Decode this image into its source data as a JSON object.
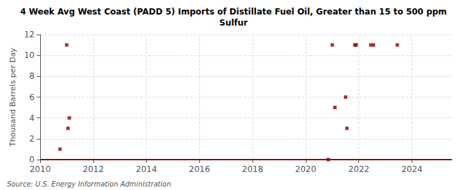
{
  "chart_data": {
    "type": "scatter",
    "title": "4 Week Avg West Coast (PADD 5) Imports of Distillate Fuel Oil, Greater than 15 to 500 ppm\nSulfur",
    "ylabel": "Thousand Barrels per Day",
    "annotations": [
      "Source: U.S. Energy Information Administration"
    ],
    "xlim": [
      2010,
      2025.5
    ],
    "xticks": [
      2010,
      2012,
      2014,
      2016,
      2018,
      2020,
      2022,
      2024
    ],
    "ylim": [
      0,
      12
    ],
    "yticks": [
      0,
      2,
      4,
      6,
      8,
      10,
      12
    ],
    "grid": true,
    "series": [
      {
        "type": "line",
        "color": "#8b0000",
        "line_style": "solid",
        "x": [
          2010,
          2025.5
        ],
        "values": [
          0,
          0
        ]
      },
      {
        "type": "scatter",
        "color": "#990000",
        "marker": "square",
        "x": [
          2010.75,
          2011.0,
          2011.05,
          2011.1,
          2020.85,
          2021.0,
          2021.1,
          2021.5,
          2021.55,
          2021.85,
          2021.9,
          2022.45,
          2022.55,
          2023.45
        ],
        "values": [
          1,
          11,
          3,
          4,
          0,
          11,
          5,
          6,
          3,
          11,
          11,
          11,
          11,
          11
        ]
      }
    ]
  }
}
